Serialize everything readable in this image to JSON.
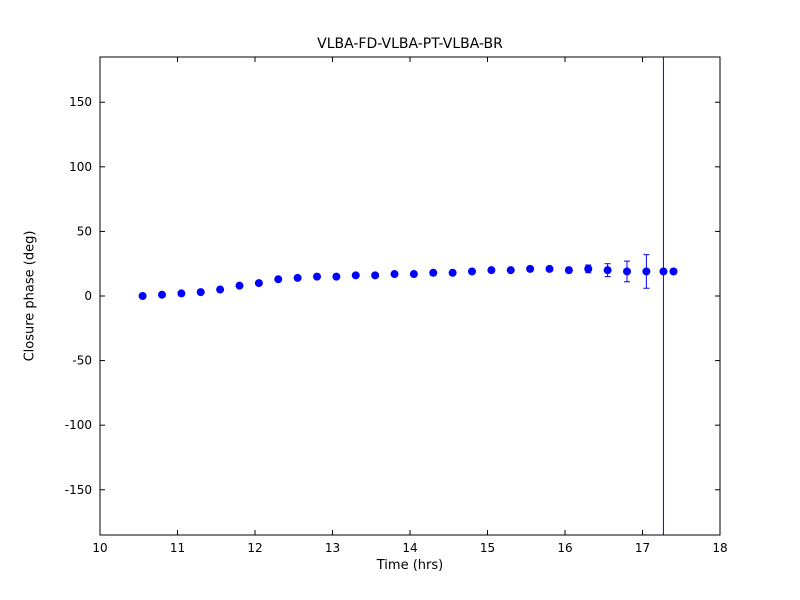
{
  "figure": {
    "background": "#ffffff",
    "frame_color": "#000000"
  },
  "chart_data": {
    "type": "scatter",
    "title": "VLBA-FD-VLBA-PT-VLBA-BR",
    "xlabel": "Time (hrs)",
    "ylabel": "Closure phase (deg)",
    "xlim": [
      10,
      18
    ],
    "ylim": [
      -185,
      185
    ],
    "xticks": [
      10,
      11,
      12,
      13,
      14,
      15,
      16,
      17,
      18
    ],
    "yticks": [
      -150,
      -100,
      -50,
      0,
      50,
      100,
      150
    ],
    "grid": false,
    "legend": null,
    "marker_color": "#0000ff",
    "errorbar_color": "#0000ff",
    "x": [
      10.55,
      10.8,
      11.05,
      11.3,
      11.55,
      11.8,
      12.05,
      12.3,
      12.55,
      12.8,
      13.05,
      13.3,
      13.55,
      13.8,
      14.05,
      14.3,
      14.55,
      14.8,
      15.05,
      15.3,
      15.55,
      15.8,
      16.05,
      16.3,
      16.55,
      16.8,
      17.05,
      17.27,
      17.4
    ],
    "y": [
      0,
      1,
      2,
      3,
      5,
      8,
      10,
      13,
      14,
      15,
      15,
      16,
      16,
      17,
      17,
      18,
      18,
      19,
      20,
      20,
      21,
      21,
      20,
      21,
      20,
      19,
      19,
      19,
      19
    ],
    "yerr": [
      1,
      1,
      1,
      1,
      1,
      1,
      1,
      1,
      1,
      1,
      1,
      1,
      1,
      1,
      1,
      1,
      1,
      1,
      1,
      1,
      1,
      1,
      2,
      3,
      5,
      8,
      13,
      500,
      2
    ]
  }
}
